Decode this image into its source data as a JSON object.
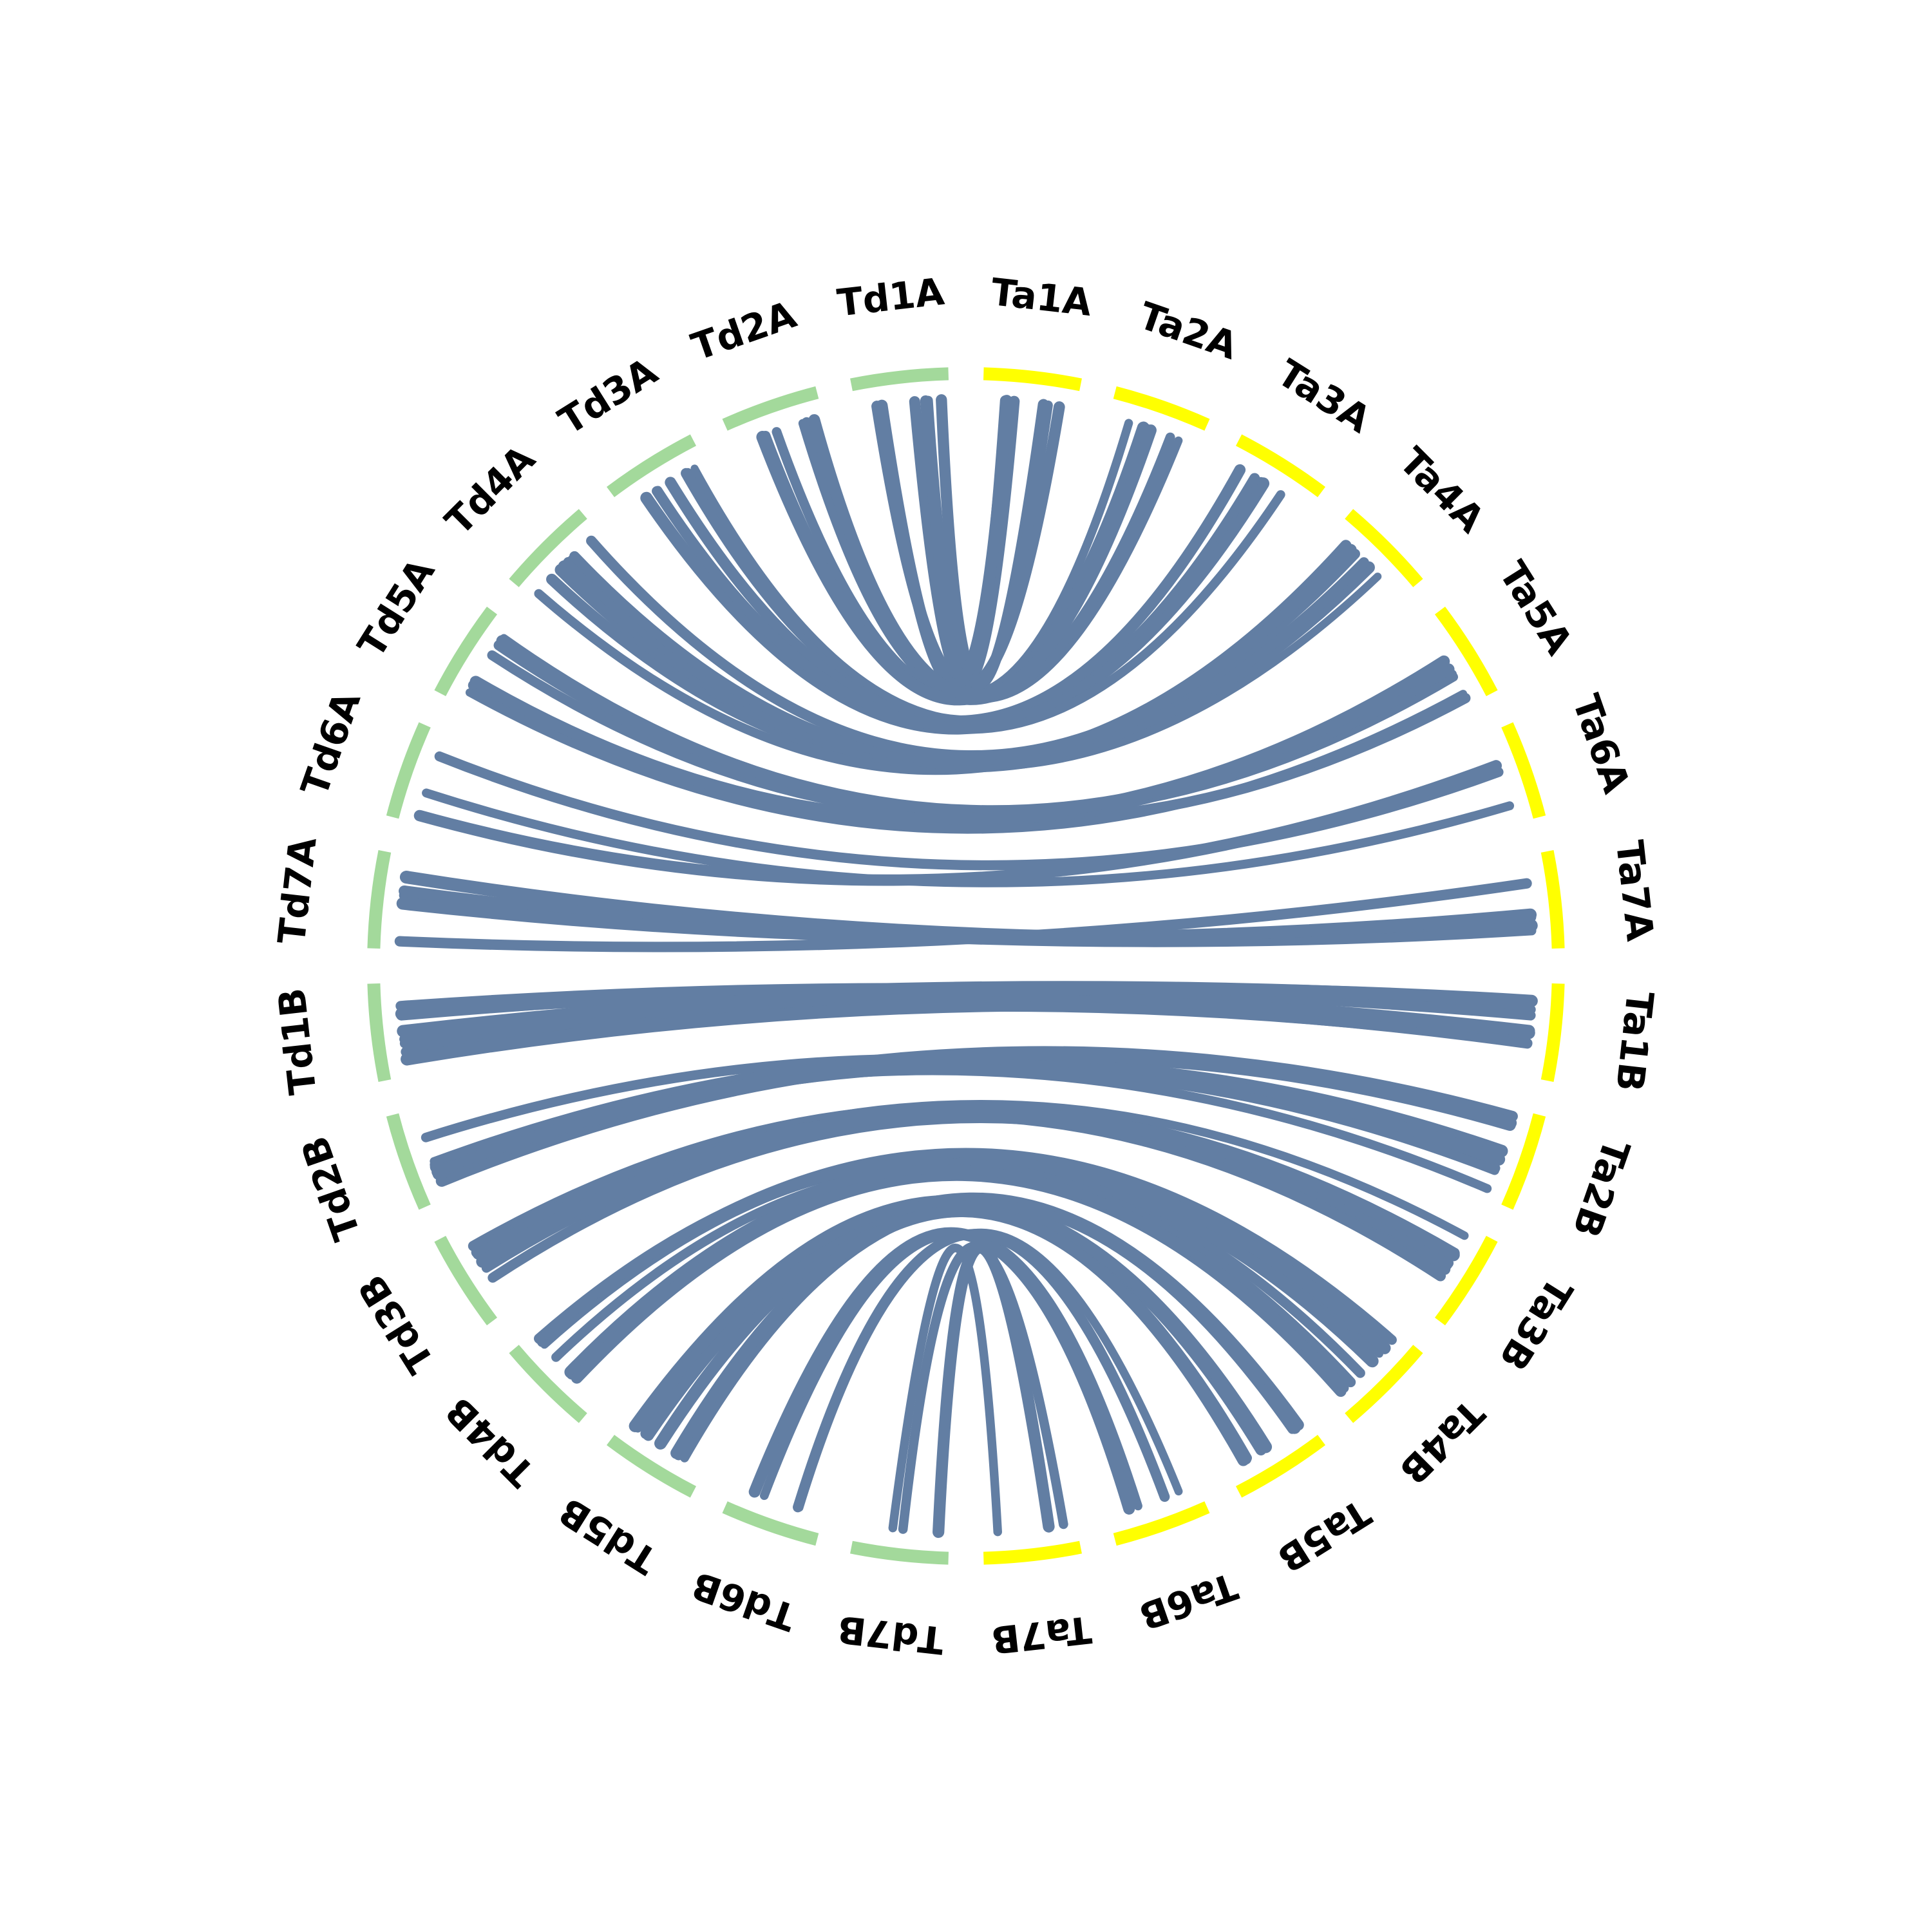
{
  "colors": {
    "td_segment": "#a3d99b",
    "ta_segment": "#ffff00",
    "link": "#627ea3",
    "label": "#000000",
    "background": "#ffffff"
  },
  "chromosomes": [
    {
      "name": "Ta1A",
      "genome": "Ta"
    },
    {
      "name": "Ta2A",
      "genome": "Ta"
    },
    {
      "name": "Ta3A",
      "genome": "Ta"
    },
    {
      "name": "Ta4A",
      "genome": "Ta"
    },
    {
      "name": "Ta5A",
      "genome": "Ta"
    },
    {
      "name": "Ta6A",
      "genome": "Ta"
    },
    {
      "name": "Ta7A",
      "genome": "Ta"
    },
    {
      "name": "Ta1B",
      "genome": "Ta"
    },
    {
      "name": "Ta2B",
      "genome": "Ta"
    },
    {
      "name": "Ta3B",
      "genome": "Ta"
    },
    {
      "name": "Ta4B",
      "genome": "Ta"
    },
    {
      "name": "Ta5B",
      "genome": "Ta"
    },
    {
      "name": "Ta6B",
      "genome": "Ta"
    },
    {
      "name": "Ta7B",
      "genome": "Ta"
    },
    {
      "name": "Td7B",
      "genome": "Td"
    },
    {
      "name": "Td6B",
      "genome": "Td"
    },
    {
      "name": "Td5B",
      "genome": "Td"
    },
    {
      "name": "Td4B",
      "genome": "Td"
    },
    {
      "name": "Td3B",
      "genome": "Td"
    },
    {
      "name": "Td2B",
      "genome": "Td"
    },
    {
      "name": "Td1B",
      "genome": "Td"
    },
    {
      "name": "Td7A",
      "genome": "Td"
    },
    {
      "name": "Td6A",
      "genome": "Td"
    },
    {
      "name": "Td5A",
      "genome": "Td"
    },
    {
      "name": "Td4A",
      "genome": "Td"
    },
    {
      "name": "Td3A",
      "genome": "Td"
    },
    {
      "name": "Td2A",
      "genome": "Td"
    },
    {
      "name": "Td1A",
      "genome": "Td"
    }
  ],
  "links": [
    {
      "from": "Td1A",
      "to": "Ta1A",
      "count": 6
    },
    {
      "from": "Td2A",
      "to": "Ta2A",
      "count": 7
    },
    {
      "from": "Td3A",
      "to": "Ta3A",
      "count": 7
    },
    {
      "from": "Td4A",
      "to": "Ta4A",
      "count": 8
    },
    {
      "from": "Td5A",
      "to": "Ta5A",
      "count": 8
    },
    {
      "from": "Td6A",
      "to": "Ta6A",
      "count": 3
    },
    {
      "from": "Td7A",
      "to": "Ta7A",
      "count": 5
    },
    {
      "from": "Td1B",
      "to": "Ta1B",
      "count": 8
    },
    {
      "from": "Td2B",
      "to": "Ta2B",
      "count": 9
    },
    {
      "from": "Td3B",
      "to": "Ta3B",
      "count": 8
    },
    {
      "from": "Td4B",
      "to": "Ta4B",
      "count": 8
    },
    {
      "from": "Td5B",
      "to": "Ta5B",
      "count": 8
    },
    {
      "from": "Td6B",
      "to": "Ta6B",
      "count": 4
    },
    {
      "from": "Td7B",
      "to": "Ta7B",
      "count": 3
    }
  ]
}
